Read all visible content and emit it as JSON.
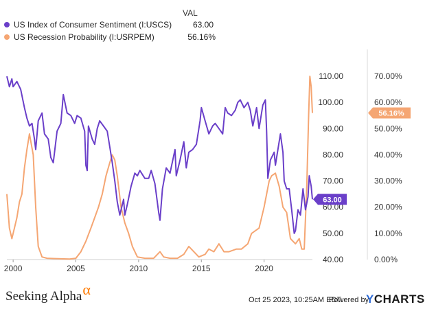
{
  "legend": {
    "header": "VAL",
    "series": [
      {
        "label": "US Index of Consumer Sentiment (I:USCS)",
        "value": "63.00",
        "color": "#6a3fc9"
      },
      {
        "label": "US Recession Probability (I:USRPEM)",
        "value": "56.16%",
        "color": "#f5a673"
      }
    ]
  },
  "footer": {
    "brand": "Seeking Alpha",
    "brand_symbol": "α",
    "timestamp": "Oct 25 2023, 10:25AM EDT.",
    "powered_by": "Powered by",
    "provider_y": "Y",
    "provider_rest": "CHARTS"
  },
  "chart_data": {
    "type": "line",
    "title": "",
    "xlabel": "",
    "x_ticks": [
      "2000",
      "2005",
      "2010",
      "2015",
      "2020"
    ],
    "xlim": [
      1999.5,
      2023.85
    ],
    "left_axis": {
      "ylim": [
        40,
        115
      ],
      "ticks": [
        "110.00",
        "100.00",
        "90.00",
        "80.00",
        "70.00",
        "60.00",
        "50.00",
        "40.00"
      ],
      "tick_values": [
        110,
        100,
        90,
        80,
        70,
        60,
        50,
        40
      ]
    },
    "right_axis": {
      "ylim": [
        0,
        75
      ],
      "ticks": [
        "70.00%",
        "60.00%",
        "50.00%",
        "40.00%",
        "30.00%",
        "20.00%",
        "10.00%",
        "0.00%"
      ],
      "tick_values": [
        70,
        60,
        50,
        40,
        30,
        20,
        10,
        0
      ]
    },
    "end_labels": {
      "left": "63.00",
      "right": "56.16%"
    },
    "series": [
      {
        "name": "US Index of Consumer Sentiment (I:USCS)",
        "axis": "left",
        "color": "#6a3fc9",
        "points": [
          [
            1999.5,
            110
          ],
          [
            1999.7,
            106
          ],
          [
            1999.9,
            109
          ],
          [
            2000.0,
            106
          ],
          [
            2000.3,
            108
          ],
          [
            2000.6,
            105
          ],
          [
            2000.9,
            98
          ],
          [
            2001.1,
            94
          ],
          [
            2001.3,
            91
          ],
          [
            2001.5,
            92
          ],
          [
            2001.7,
            86
          ],
          [
            2001.8,
            82
          ],
          [
            2002.0,
            93
          ],
          [
            2002.3,
            96
          ],
          [
            2002.5,
            88
          ],
          [
            2002.8,
            86
          ],
          [
            2003.0,
            79
          ],
          [
            2003.2,
            77
          ],
          [
            2003.5,
            89
          ],
          [
            2003.8,
            92
          ],
          [
            2004.0,
            103
          ],
          [
            2004.3,
            96
          ],
          [
            2004.6,
            95
          ],
          [
            2004.9,
            92
          ],
          [
            2005.1,
            95
          ],
          [
            2005.4,
            94
          ],
          [
            2005.7,
            89
          ],
          [
            2005.8,
            76
          ],
          [
            2005.9,
            74
          ],
          [
            2006.0,
            91
          ],
          [
            2006.3,
            86
          ],
          [
            2006.5,
            84
          ],
          [
            2006.7,
            90
          ],
          [
            2006.9,
            93
          ],
          [
            2007.2,
            91
          ],
          [
            2007.5,
            89
          ],
          [
            2007.7,
            83
          ],
          [
            2007.9,
            77
          ],
          [
            2008.1,
            70
          ],
          [
            2008.3,
            62
          ],
          [
            2008.5,
            57
          ],
          [
            2008.8,
            63
          ],
          [
            2008.9,
            57
          ],
          [
            2009.1,
            61
          ],
          [
            2009.4,
            68
          ],
          [
            2009.7,
            73
          ],
          [
            2009.9,
            72
          ],
          [
            2010.1,
            74
          ],
          [
            2010.5,
            71
          ],
          [
            2010.8,
            71
          ],
          [
            2011.0,
            74
          ],
          [
            2011.3,
            69
          ],
          [
            2011.6,
            58
          ],
          [
            2011.7,
            55
          ],
          [
            2011.9,
            67
          ],
          [
            2012.2,
            75
          ],
          [
            2012.5,
            73
          ],
          [
            2012.9,
            82
          ],
          [
            2013.0,
            72
          ],
          [
            2013.3,
            78
          ],
          [
            2013.6,
            85
          ],
          [
            2013.8,
            75
          ],
          [
            2014.0,
            81
          ],
          [
            2014.3,
            82
          ],
          [
            2014.6,
            84
          ],
          [
            2014.9,
            93
          ],
          [
            2015.0,
            98
          ],
          [
            2015.3,
            93
          ],
          [
            2015.6,
            88
          ],
          [
            2015.9,
            91
          ],
          [
            2016.1,
            92
          ],
          [
            2016.4,
            90
          ],
          [
            2016.7,
            88
          ],
          [
            2016.9,
            98
          ],
          [
            2017.1,
            96
          ],
          [
            2017.4,
            95
          ],
          [
            2017.7,
            97
          ],
          [
            2017.9,
            100
          ],
          [
            2018.1,
            101
          ],
          [
            2018.4,
            98
          ],
          [
            2018.7,
            100
          ],
          [
            2018.9,
            97
          ],
          [
            2019.1,
            91
          ],
          [
            2019.4,
            98
          ],
          [
            2019.6,
            90
          ],
          [
            2019.9,
            99
          ],
          [
            2020.1,
            101
          ],
          [
            2020.2,
            89
          ],
          [
            2020.3,
            71
          ],
          [
            2020.5,
            78
          ],
          [
            2020.8,
            81
          ],
          [
            2020.9,
            76
          ],
          [
            2021.0,
            79
          ],
          [
            2021.3,
            88
          ],
          [
            2021.5,
            81
          ],
          [
            2021.6,
            70
          ],
          [
            2021.8,
            67
          ],
          [
            2022.0,
            67
          ],
          [
            2022.2,
            59
          ],
          [
            2022.4,
            50
          ],
          [
            2022.5,
            51
          ],
          [
            2022.7,
            59
          ],
          [
            2022.9,
            57
          ],
          [
            2023.1,
            67
          ],
          [
            2023.3,
            59
          ],
          [
            2023.5,
            64
          ],
          [
            2023.6,
            72
          ],
          [
            2023.75,
            68
          ],
          [
            2023.85,
            63
          ]
        ]
      },
      {
        "name": "US Recession Probability (I:USRPEM)",
        "axis": "right",
        "color": "#f5a673",
        "points": [
          [
            1999.5,
            25
          ],
          [
            1999.7,
            12
          ],
          [
            1999.9,
            8
          ],
          [
            2000.1,
            12
          ],
          [
            2000.3,
            16
          ],
          [
            2000.5,
            22
          ],
          [
            2000.7,
            25
          ],
          [
            2000.9,
            35
          ],
          [
            2001.1,
            42
          ],
          [
            2001.3,
            48
          ],
          [
            2001.6,
            40
          ],
          [
            2001.8,
            20
          ],
          [
            2002.0,
            5
          ],
          [
            2002.3,
            1
          ],
          [
            2002.7,
            0.5
          ],
          [
            2003.2,
            0.4
          ],
          [
            2003.8,
            0.3
          ],
          [
            2004.5,
            0.2
          ],
          [
            2005.0,
            0.5
          ],
          [
            2005.4,
            3
          ],
          [
            2005.8,
            7
          ],
          [
            2006.2,
            12
          ],
          [
            2006.5,
            16
          ],
          [
            2006.8,
            20
          ],
          [
            2007.1,
            25
          ],
          [
            2007.4,
            32
          ],
          [
            2007.7,
            37
          ],
          [
            2007.9,
            40
          ],
          [
            2008.1,
            38
          ],
          [
            2008.3,
            32
          ],
          [
            2008.6,
            20
          ],
          [
            2008.9,
            14
          ],
          [
            2009.2,
            10
          ],
          [
            2009.5,
            5
          ],
          [
            2009.9,
            1
          ],
          [
            2010.5,
            0.5
          ],
          [
            2011.2,
            0.5
          ],
          [
            2011.7,
            3
          ],
          [
            2012.0,
            1
          ],
          [
            2012.5,
            0.5
          ],
          [
            2013.1,
            0.5
          ],
          [
            2013.6,
            2
          ],
          [
            2014.0,
            5
          ],
          [
            2014.4,
            3
          ],
          [
            2014.8,
            1
          ],
          [
            2015.3,
            2
          ],
          [
            2015.6,
            4
          ],
          [
            2016.0,
            3
          ],
          [
            2016.4,
            6
          ],
          [
            2016.8,
            3
          ],
          [
            2017.2,
            3
          ],
          [
            2017.8,
            4
          ],
          [
            2018.2,
            4
          ],
          [
            2018.7,
            6
          ],
          [
            2019.0,
            10
          ],
          [
            2019.3,
            11
          ],
          [
            2019.6,
            12
          ],
          [
            2020.0,
            20
          ],
          [
            2020.2,
            25
          ],
          [
            2020.4,
            30
          ],
          [
            2020.6,
            32
          ],
          [
            2020.9,
            33
          ],
          [
            2021.2,
            28
          ],
          [
            2021.5,
            20
          ],
          [
            2021.8,
            18
          ],
          [
            2022.1,
            8
          ],
          [
            2022.5,
            6
          ],
          [
            2022.8,
            8
          ],
          [
            2023.0,
            4
          ],
          [
            2023.2,
            4
          ],
          [
            2023.4,
            28
          ],
          [
            2023.55,
            55
          ],
          [
            2023.65,
            70
          ],
          [
            2023.75,
            66
          ],
          [
            2023.85,
            56
          ]
        ]
      }
    ]
  }
}
